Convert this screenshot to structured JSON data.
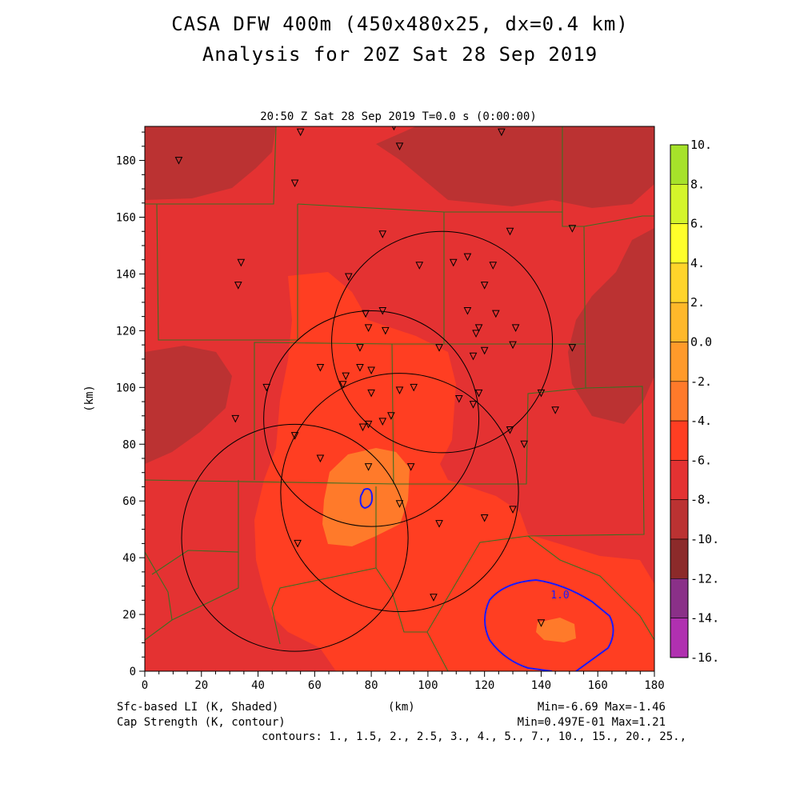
{
  "title_line1": "CASA DFW 400m (450x480x25, dx=0.4 km)",
  "title_line2": "Analysis for 20Z Sat 28 Sep 2019",
  "chart_data": {
    "type": "heatmap",
    "subtitle": "20:50 Z Sat 28 Sep 2019    T=0.0 s (0:00:00)",
    "xlabel": "(km)",
    "ylabel": "(km)",
    "xlim": [
      0,
      180
    ],
    "ylim": [
      0,
      192
    ],
    "xticks": [
      0,
      20,
      40,
      60,
      80,
      100,
      120,
      140,
      160,
      180
    ],
    "yticks": [
      0,
      20,
      40,
      60,
      80,
      100,
      120,
      140,
      160,
      180
    ],
    "colorbar": {
      "ticks": [
        "10.",
        "8.",
        "6.",
        "4.",
        "2.",
        "0.0",
        "-2.",
        "-4.",
        "-6.",
        "-8.",
        "-10.",
        "-12.",
        "-14.",
        "-16."
      ],
      "colors": [
        "#a6e22a",
        "#d4f52a",
        "#ffff2a",
        "#ffd42a",
        "#ffb82a",
        "#ff9a2a",
        "#ff7a2a",
        "#ff3e22",
        "#e43232",
        "#bb3232",
        "#8c2a2a",
        "#8a3088",
        "#b030b0",
        "#cc3acc",
        "#e040e0"
      ]
    },
    "fill_levels": {
      "base": -6,
      "darker": -8,
      "lighter": -4,
      "lightest": -2
    },
    "radar_rings": [
      {
        "cx": 105,
        "cy": 116,
        "r": 39
      },
      {
        "cx": 80,
        "cy": 89,
        "r": 38
      },
      {
        "cx": 90,
        "cy": 63,
        "r": 42
      },
      {
        "cx": 53,
        "cy": 47,
        "r": 40
      }
    ],
    "contour_labels": [
      "1.0"
    ],
    "stations": [
      [
        12,
        180
      ],
      [
        55,
        190
      ],
      [
        88,
        192
      ],
      [
        90,
        185
      ],
      [
        126,
        190
      ],
      [
        53,
        172
      ],
      [
        84,
        154
      ],
      [
        129,
        155
      ],
      [
        151,
        156
      ],
      [
        34,
        144
      ],
      [
        33,
        136
      ],
      [
        72,
        139
      ],
      [
        97,
        143
      ],
      [
        109,
        144
      ],
      [
        114,
        146
      ],
      [
        120,
        136
      ],
      [
        123,
        143
      ],
      [
        78,
        126
      ],
      [
        84,
        127
      ],
      [
        114,
        127
      ],
      [
        124,
        126
      ],
      [
        79,
        121
      ],
      [
        85,
        120
      ],
      [
        118,
        121
      ],
      [
        131,
        121
      ],
      [
        117,
        119
      ],
      [
        104,
        114
      ],
      [
        76,
        114
      ],
      [
        130,
        115
      ],
      [
        151,
        114
      ],
      [
        120,
        113
      ],
      [
        116,
        111
      ],
      [
        62,
        107
      ],
      [
        80,
        106
      ],
      [
        76,
        107
      ],
      [
        71,
        104
      ],
      [
        70,
        101
      ],
      [
        43,
        100
      ],
      [
        80,
        98
      ],
      [
        90,
        99
      ],
      [
        95,
        100
      ],
      [
        111,
        96
      ],
      [
        118,
        98
      ],
      [
        116,
        94
      ],
      [
        140,
        98
      ],
      [
        145,
        92
      ],
      [
        32,
        89
      ],
      [
        87,
        90
      ],
      [
        84,
        88
      ],
      [
        79,
        87
      ],
      [
        77,
        86
      ],
      [
        129,
        85
      ],
      [
        53,
        83
      ],
      [
        134,
        80
      ],
      [
        62,
        75
      ],
      [
        79,
        72
      ],
      [
        94,
        72
      ],
      [
        90,
        59
      ],
      [
        130,
        57
      ],
      [
        120,
        54
      ],
      [
        104,
        52
      ],
      [
        54,
        45
      ],
      [
        102,
        26
      ],
      [
        140,
        17
      ]
    ]
  },
  "footer": {
    "left1": "Sfc-based LI (K, Shaded)",
    "left2": "Cap Strength (K, contour)",
    "center": "(km)",
    "right1": "Min=-6.69 Max=-1.46",
    "right2": "Min=0.497E-01 Max=1.21",
    "contours": "contours: 1., 1.5, 2., 2.5, 3., 4., 5., 7., 10., 15., 20., 25.,"
  }
}
